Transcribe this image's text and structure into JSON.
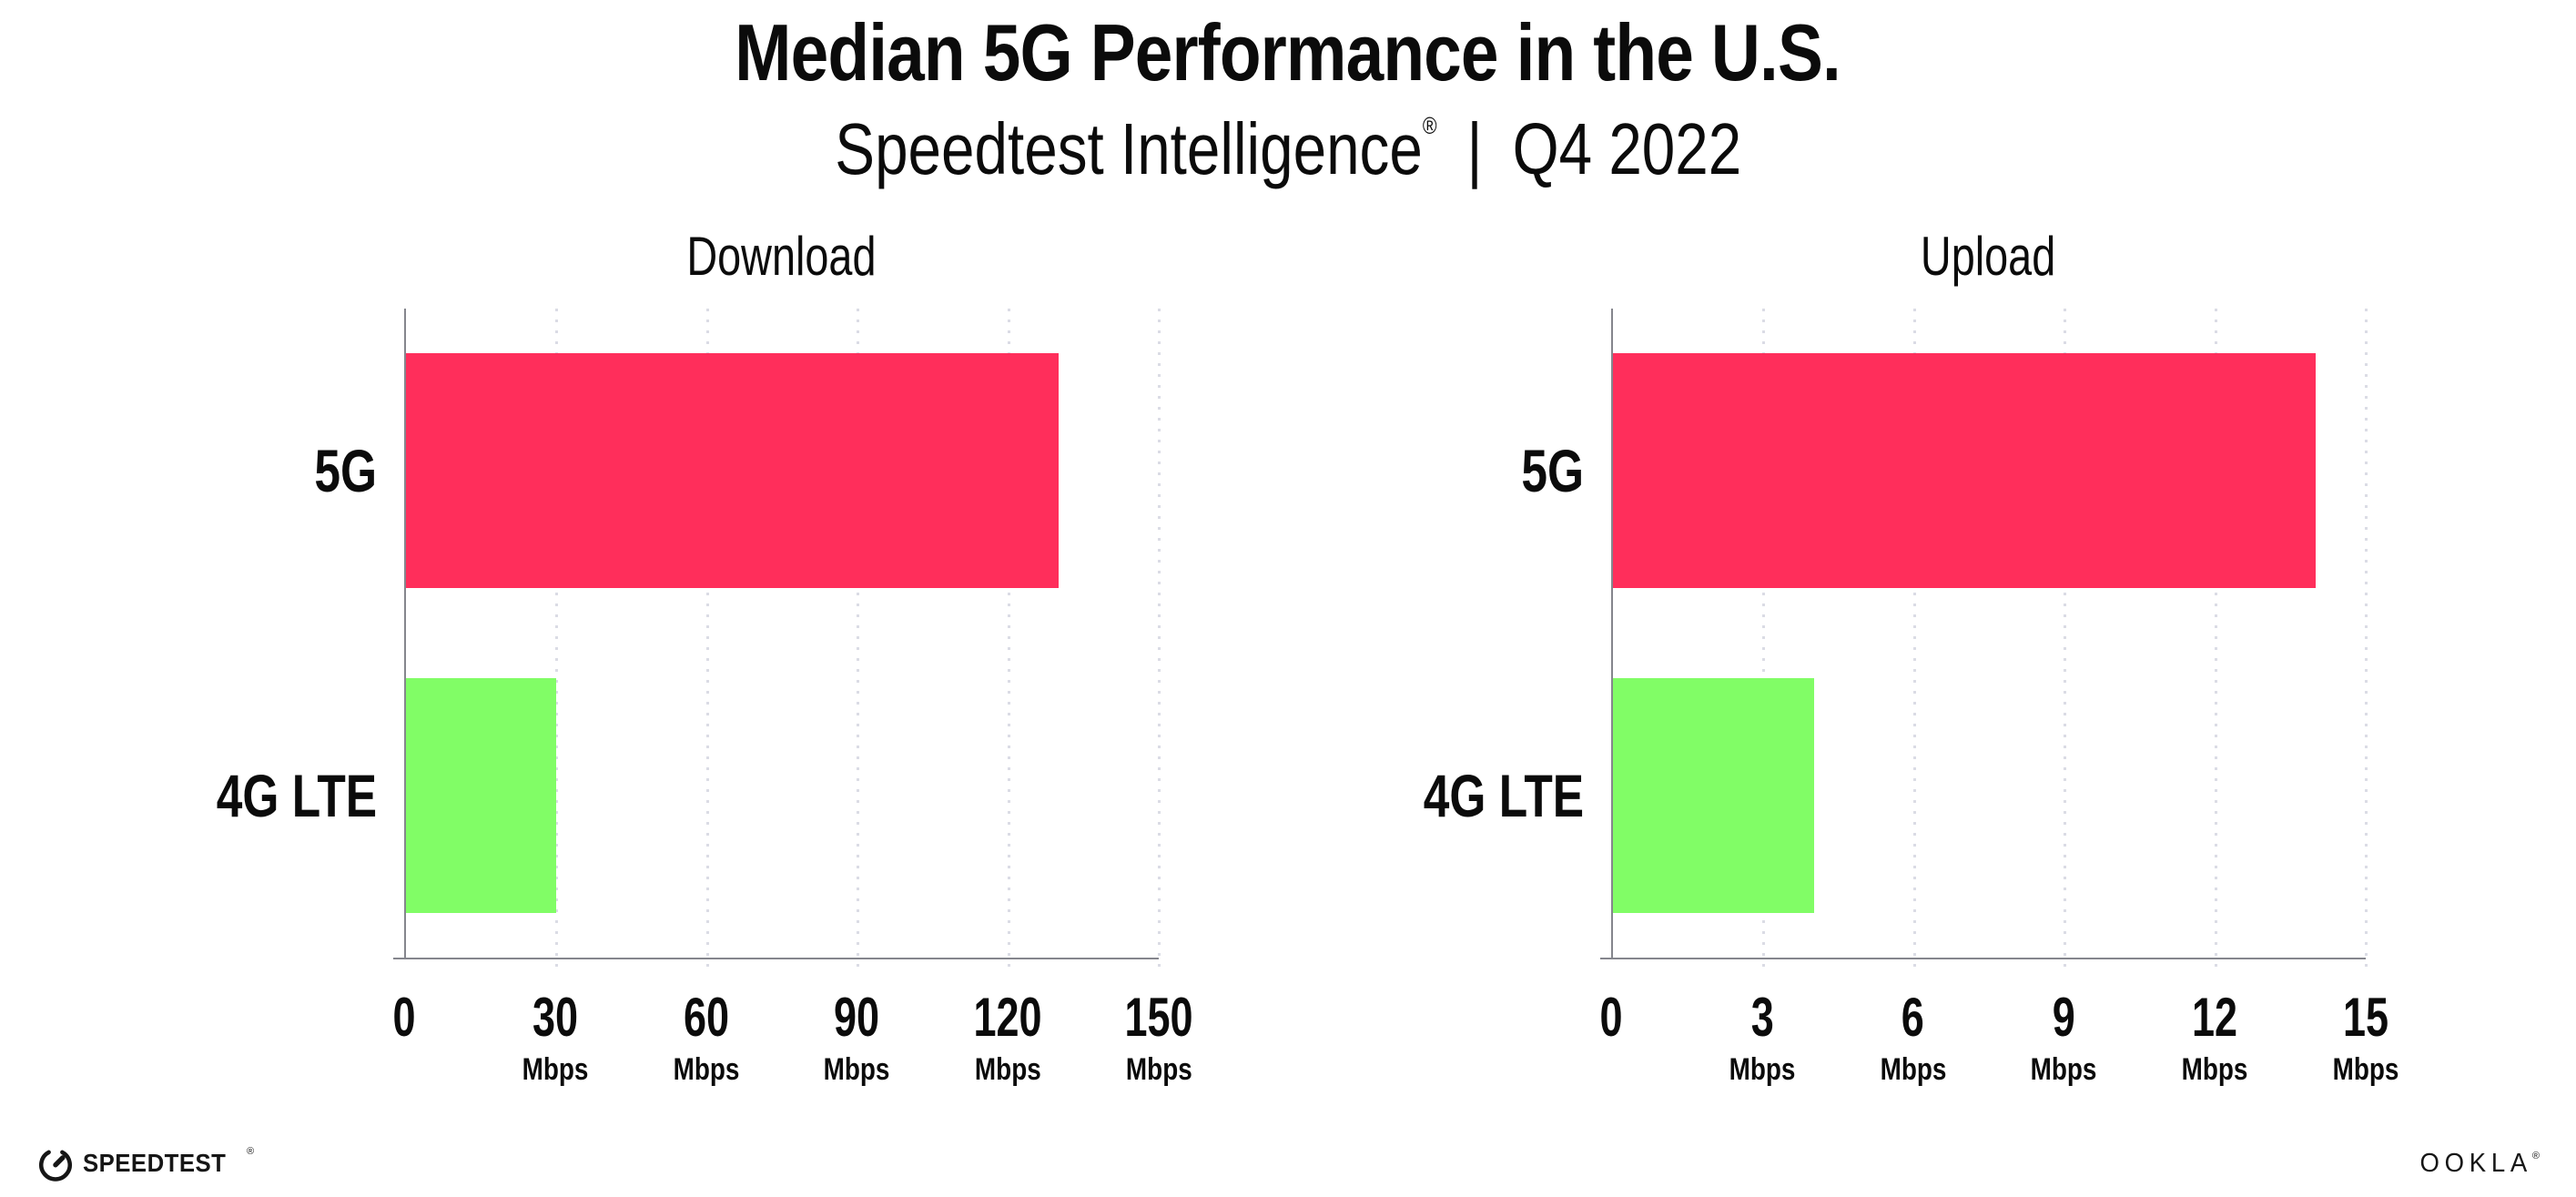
{
  "header": {
    "title": "Median 5G Performance in the U.S.",
    "subtitle": {
      "brand": "Speedtest Intelligence",
      "registered_mark": "®",
      "separator": "|",
      "period": "Q4 2022"
    }
  },
  "chart_data": [
    {
      "type": "bar",
      "orientation": "horizontal",
      "title": "Download",
      "categories": [
        "5G",
        "4G LTE"
      ],
      "values": [
        130,
        30
      ],
      "value_unit": "Mbps",
      "xlim": [
        0,
        150
      ],
      "xticks": [
        0,
        30,
        60,
        90,
        120,
        150
      ],
      "ticks": [
        {
          "label": "0",
          "unit": ""
        },
        {
          "label": "30",
          "unit": "Mbps"
        },
        {
          "label": "60",
          "unit": "Mbps"
        },
        {
          "label": "90",
          "unit": "Mbps"
        },
        {
          "label": "120",
          "unit": "Mbps"
        },
        {
          "label": "150",
          "unit": "Mbps"
        }
      ],
      "bar_colors": [
        "#FF2E5B",
        "#81FD66"
      ],
      "grid": "dotted vertical gridlines at each tick",
      "legend": "none"
    },
    {
      "type": "bar",
      "orientation": "horizontal",
      "title": "Upload",
      "categories": [
        "5G",
        "4G LTE"
      ],
      "values": [
        14,
        4
      ],
      "value_unit": "Mbps",
      "xlim": [
        0,
        15
      ],
      "xticks": [
        0,
        3,
        6,
        9,
        12,
        15
      ],
      "ticks": [
        {
          "label": "0",
          "unit": ""
        },
        {
          "label": "3",
          "unit": "Mbps"
        },
        {
          "label": "6",
          "unit": "Mbps"
        },
        {
          "label": "9",
          "unit": "Mbps"
        },
        {
          "label": "12",
          "unit": "Mbps"
        },
        {
          "label": "15",
          "unit": "Mbps"
        }
      ],
      "bar_colors": [
        "#FF2E5B",
        "#81FD66"
      ],
      "grid": "dotted vertical gridlines at each tick",
      "legend": "none"
    }
  ],
  "footer": {
    "speedtest": {
      "text": "SPEEDTEST",
      "mark": "®",
      "icon": "gauge-icon"
    },
    "ookla": {
      "text": "OOKLA",
      "mark": "®"
    }
  },
  "colors": {
    "bar_5g": "#FF2E5B",
    "bar_4g_lte": "#81FD66",
    "axis_line": "#85868D",
    "gridline": "#DBDCE5",
    "text": "#0B0B0B",
    "background": "#FFFFFF"
  }
}
